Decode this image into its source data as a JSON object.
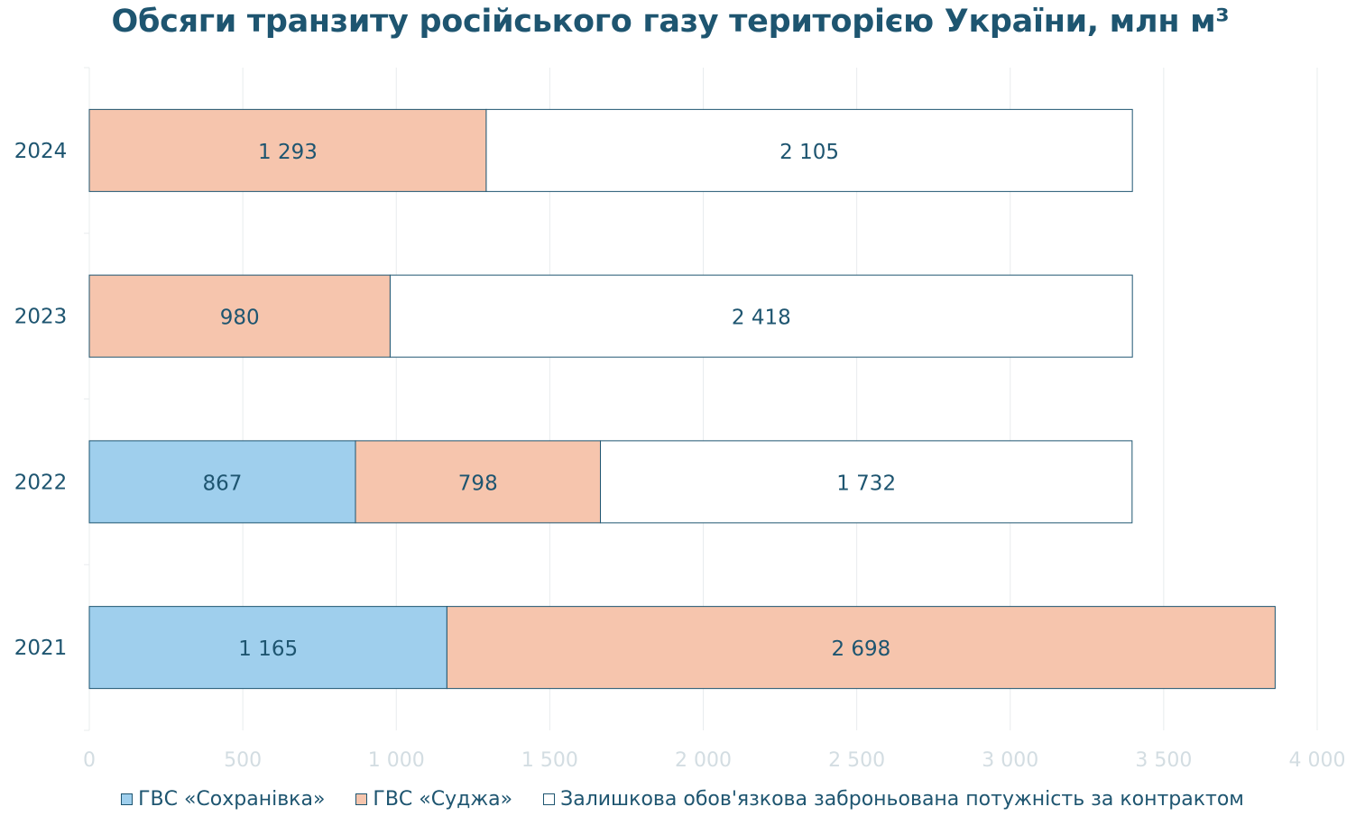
{
  "chart_data": {
    "type": "bar",
    "orientation": "horizontal",
    "stacked": true,
    "title": "Обсяги транзиту російського газу територією України, млн м³",
    "categories": [
      "2024",
      "2023",
      "2022",
      "2021"
    ],
    "series": [
      {
        "name": "ГВС «Сохранівка»",
        "color": "#9fcfed",
        "values": [
          0,
          0,
          867,
          1165
        ],
        "labels": [
          "",
          "",
          "867",
          "1 165"
        ]
      },
      {
        "name": "ГВС «Суджа»",
        "color": "#f6c5ad",
        "values": [
          1293,
          980,
          798,
          2698
        ],
        "labels": [
          "1 293",
          "980",
          "798",
          "2 698"
        ]
      },
      {
        "name": "Залишкова обов'язкова заброньована потужність за контрактом",
        "color": "#ffffff",
        "values": [
          2105,
          2418,
          1732,
          0
        ],
        "labels": [
          "2 105",
          "2 418",
          "1 732",
          ""
        ]
      }
    ],
    "xlim": [
      0,
      4000
    ],
    "xticks": [
      0,
      500,
      1000,
      1500,
      2000,
      2500,
      3000,
      3500,
      4000
    ],
    "xtick_labels": [
      "0",
      "500",
      "1 000",
      "1 500",
      "2 000",
      "2 500",
      "3 000",
      "3 500",
      "4 000"
    ],
    "grid": true,
    "legend_position": "bottom",
    "colors": {
      "text": "#1e5570",
      "tick": "#d3dde2",
      "grid": "#e8ecee",
      "bar_border": "#1e5570"
    }
  }
}
